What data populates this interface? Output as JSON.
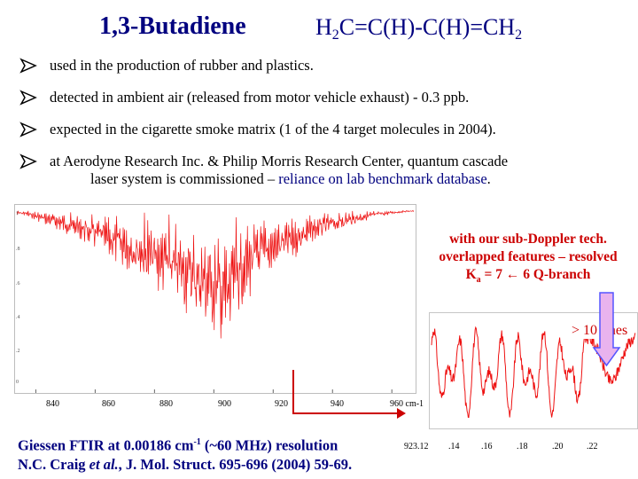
{
  "title": {
    "name": "1,3-Butadiene",
    "formula_parts": [
      "H",
      "2",
      "C=C(H)-C(H)=CH",
      "2"
    ]
  },
  "bullets": [
    {
      "text": "used in the production of rubber and plastics."
    },
    {
      "text": "detected in ambient air (released from motor vehicle exhaust) - 0.3 ppb."
    },
    {
      "text": "expected in the cigarette smoke matrix (1 of the 4 target molecules in 2004)."
    },
    {
      "text": "at Aerodyne Research Inc. & Philip Morris Research Center, quantum cascade",
      "continuation": "laser system is commissioned – ",
      "highlight": "reliance on lab benchmark database",
      "tail": "."
    }
  ],
  "callout": {
    "line1": "with our sub-Doppler tech.",
    "line2": "overlapped features – resolved",
    "line3_pre": "K",
    "line3_sub": "a",
    "line3_post": " = 7 ← 6 Q-branch"
  },
  "lines_label": "> 10 lines",
  "footer": {
    "line1_pre": "Giessen FTIR at 0.00186 cm",
    "line1_sup": "-1",
    "line1_post": " (~60 MHz) resolution",
    "line2_pre": "N.C. Craig ",
    "line2_em": "et al.",
    "line2_post": ", J. Mol. Struct. 695-696 (2004) 59-69."
  },
  "colors": {
    "spectrum": "#ee1111",
    "arrow": "#cc0000",
    "title": "#00007f",
    "callout_arrow_fill": "#e9b3ee",
    "callout_arrow_stroke": "#5555ff"
  },
  "chart_data": [
    {
      "type": "line",
      "title": "",
      "xlabel": "cm-1",
      "ylabel": "",
      "x_ticks": [
        "840",
        "860",
        "880",
        "900",
        "920",
        "940",
        "960 cm-1"
      ],
      "x_tick_values": [
        840,
        860,
        880,
        900,
        920,
        940,
        960
      ],
      "y_ticks": [
        "1",
        ".8",
        ".6",
        ".4",
        ".2",
        "0"
      ],
      "xlim": [
        833,
        968
      ],
      "ylim": [
        0,
        1
      ],
      "series": [
        {
          "color": "#ee1111",
          "description_points": [
            [
              836,
              0.97
            ],
            [
              845,
              0.9
            ],
            [
              855,
              0.82
            ],
            [
              865,
              0.7
            ],
            [
              875,
              0.58
            ],
            [
              885,
              0.45
            ],
            [
              895,
              0.3
            ],
            [
              905,
              0.12
            ],
            [
              908,
              0.36
            ],
            [
              915,
              0.55
            ],
            [
              925,
              0.68
            ],
            [
              935,
              0.82
            ],
            [
              945,
              0.9
            ],
            [
              955,
              0.96
            ],
            [
              965,
              0.99
            ]
          ]
        }
      ]
    },
    {
      "type": "line",
      "title": "",
      "x_ticks": [
        "923.12",
        ".14",
        ".16",
        ".18",
        ".20",
        ".22"
      ],
      "x_tick_values": [
        923.12,
        923.14,
        923.16,
        923.18,
        923.2,
        923.22
      ],
      "xlim": [
        923.115,
        923.225
      ],
      "series": [
        {
          "color": "#ee1111"
        }
      ]
    }
  ]
}
